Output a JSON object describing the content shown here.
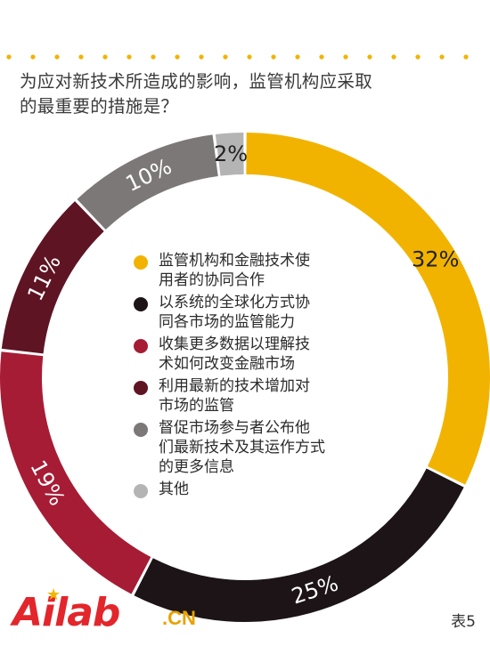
{
  "question": {
    "line1": "为应对新技术所造成的影响，监管机构应采取",
    "line2": "的最重要的措施是？"
  },
  "colors": {
    "accent": "#f2b300",
    "dots": "#f2b300"
  },
  "chart_data": {
    "type": "pie",
    "style": "donut",
    "title": "为应对新技术所造成的影响，监管机构应采取的最重要的措施是？",
    "categories": [
      "监管机构和金融技术使用者的协同合作",
      "以系统的全球化方式协同各市场的监管能力",
      "收集更多数据以理解技术如何改变金融市场",
      "利用最新的技术增加对市场的监管",
      "督促市场参与者公布他们最新技术及其运作方式的更多信息",
      "其他"
    ],
    "values": [
      32,
      25,
      19,
      11,
      10,
      2
    ],
    "labels": [
      "32%",
      "25%",
      "19%",
      "11%",
      "10%",
      "2%"
    ],
    "colors": [
      "#f2b300",
      "#1c1416",
      "#a61c35",
      "#5e1423",
      "#7d7878",
      "#b4b4b4"
    ],
    "legend_position": "center"
  },
  "legend": [
    {
      "text": "监管机构和金融技术使\n用者的协同合作",
      "color": "#f2b300"
    },
    {
      "text": "以系统的全球化方式协\n同各市场的监管能力",
      "color": "#1c1416"
    },
    {
      "text": "收集更多数据以理解技\n术如何改变金融市场",
      "color": "#a61c35"
    },
    {
      "text": "利用最新的技术增加对\n市场的监管",
      "color": "#5e1423"
    },
    {
      "text": "督促市场参与者公布他\n们最新技术及其运作方式\n的更多信息",
      "color": "#7d7878"
    },
    {
      "text": "其他",
      "color": "#b4b4b4"
    }
  ],
  "logo": {
    "main": "Ailab",
    "suffix": ".CN",
    "star_icon": "star-icon"
  },
  "figure_label": "表5"
}
